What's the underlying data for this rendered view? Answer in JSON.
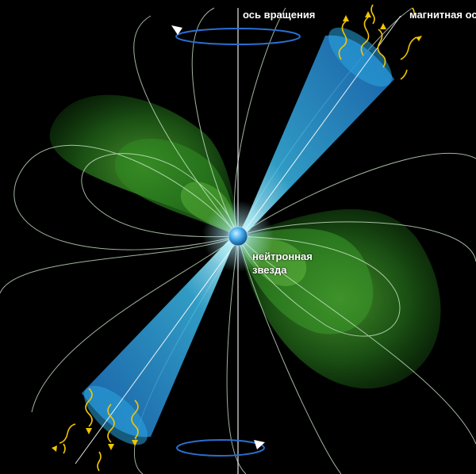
{
  "labels": {
    "rotation_axis": "ось вращения",
    "magnetic_axis": "магнитная ось",
    "star_line1": "нейтронная",
    "star_line2": "звезда"
  },
  "colors": {
    "background": "#000000",
    "field_green": "#2f8a22",
    "field_lines": "#cfe9d2",
    "beam_blue": "#1a86d0",
    "star_blue": "#3aa0e6",
    "radiation_waves": "#f2c500",
    "rotation_arrows": "#2a6fd0"
  },
  "icons": {
    "rotation_arrow_top": "curved-arrow-left-icon",
    "rotation_arrow_bottom": "curved-arrow-right-icon"
  }
}
